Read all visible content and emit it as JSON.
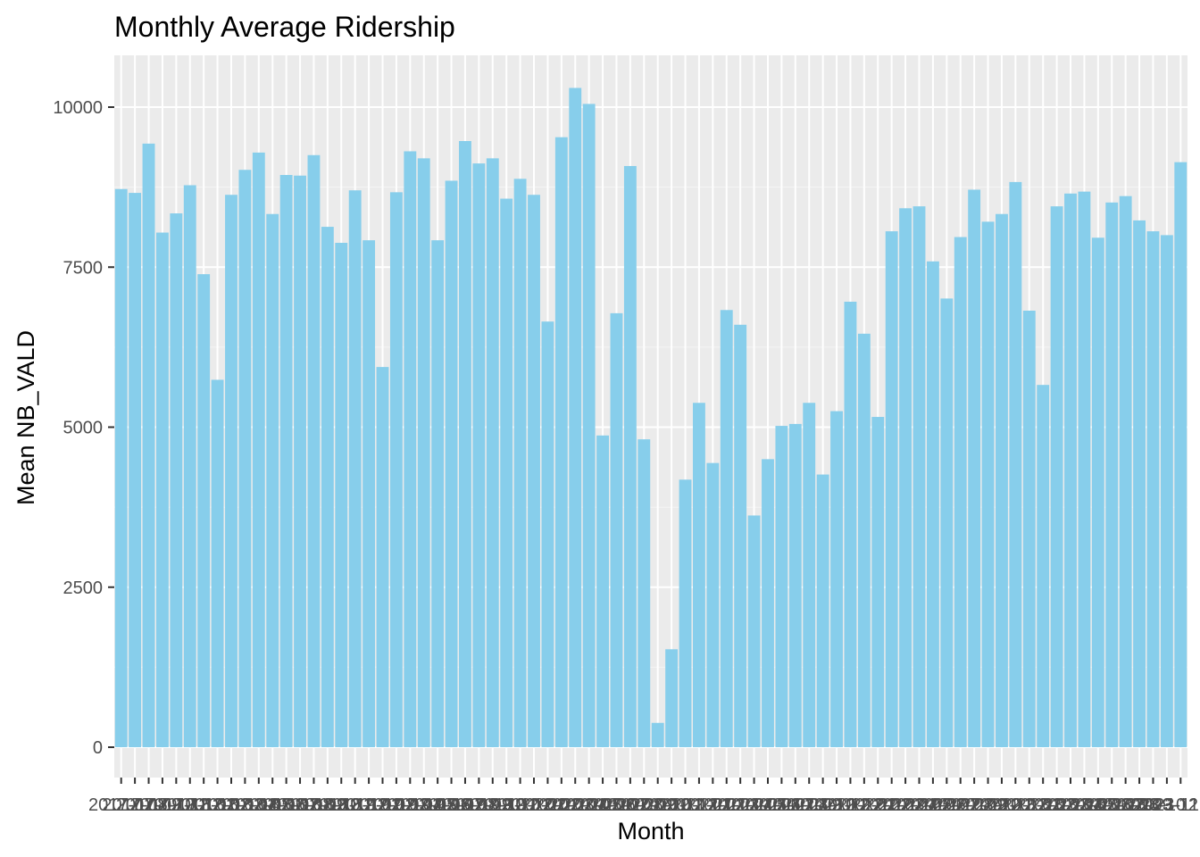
{
  "colors": {
    "bar": "#87ceeb",
    "panel_background": "#ebebeb",
    "grid_major": "#ffffff",
    "grid_minor": "#f5f5f5",
    "tick": "#333333"
  },
  "chart_data": {
    "type": "bar",
    "title": "Monthly Average Ridership",
    "xlabel": "Month",
    "ylabel": "Mean NB_VALD",
    "ylim": [
      -400,
      10800
    ],
    "y_ticks": [
      0,
      2500,
      5000,
      7500,
      10000
    ],
    "y_tick_labels": [
      "0",
      "2500",
      "5000",
      "7500",
      "10000"
    ],
    "grid": true,
    "legend": "none",
    "x_tick_labels_overlapping": "2017-07 … 2023-05 (unreadable, overlapping)",
    "categories": [
      "2017-07",
      "2017-08",
      "2017-09",
      "2017-10",
      "2017-11",
      "2017-12",
      "2018-01",
      "2018-02",
      "2018-03",
      "2018-04",
      "2018-05",
      "2018-06",
      "2018-07",
      "2018-08",
      "2018-09",
      "2018-10",
      "2018-11",
      "2018-12",
      "2019-01",
      "2019-02",
      "2019-03",
      "2019-04",
      "2019-05",
      "2019-06",
      "2019-07",
      "2019-08",
      "2019-09",
      "2019-10",
      "2019-11",
      "2019-12",
      "2020-01",
      "2020-02",
      "2020-03",
      "2020-04",
      "2020-05",
      "2020-06",
      "2020-07",
      "2020-08",
      "2020-09",
      "2020-10",
      "2020-11",
      "2020-12",
      "2021-01",
      "2021-02",
      "2021-03",
      "2021-04",
      "2021-05",
      "2021-06",
      "2021-07",
      "2021-08",
      "2021-09",
      "2021-10",
      "2021-11",
      "2021-12",
      "2022-01",
      "2022-02",
      "2022-03",
      "2022-04",
      "2022-05",
      "2022-06",
      "2022-07",
      "2022-08",
      "2022-09",
      "2022-10",
      "2022-11",
      "2022-12",
      "2023-01",
      "2023-02",
      "2023-03",
      "2023-04",
      "2023-05",
      "2023-06",
      "2023-07",
      "2023-08",
      "2023-09",
      "2023-10",
      "2023-11",
      "2023-12"
    ],
    "values": [
      8720,
      8660,
      9430,
      8040,
      8340,
      8780,
      7390,
      5740,
      8630,
      9020,
      9290,
      8330,
      8940,
      8930,
      9250,
      8130,
      7880,
      8700,
      7920,
      5940,
      8670,
      9310,
      9200,
      7920,
      8850,
      9470,
      9120,
      9200,
      8570,
      8880,
      8630,
      6650,
      9530,
      10300,
      10050,
      4870,
      6780,
      9080,
      4810,
      380,
      1530,
      4180,
      5380,
      4440,
      6830,
      6600,
      3620,
      4500,
      5020,
      5050,
      5380,
      4260,
      5250,
      6960,
      6460,
      5160,
      8060,
      8420,
      8450,
      7590,
      7010,
      7970,
      8710,
      8210,
      8330,
      8830,
      6820,
      5660,
      8450,
      8650,
      8680,
      7960,
      8510,
      8610,
      8230,
      8060,
      8000,
      9140
    ]
  }
}
